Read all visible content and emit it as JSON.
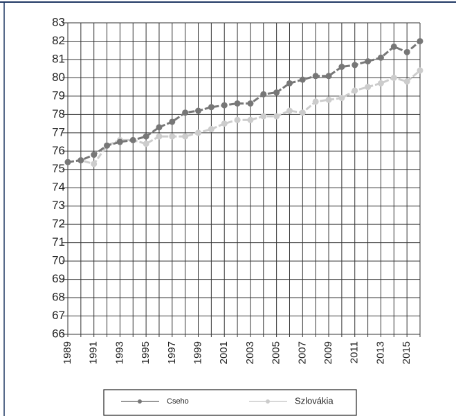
{
  "chart_data": {
    "type": "line",
    "categories": [
      "1989",
      null,
      "1991",
      null,
      "1993",
      null,
      "1995",
      null,
      "1997",
      null,
      "1999",
      null,
      "2001",
      null,
      "2003",
      null,
      "2005",
      null,
      "2007",
      null,
      "2009",
      null,
      "2011",
      null,
      "2013",
      null,
      "2015",
      null
    ],
    "series": [
      {
        "name": "Cseho",
        "color": "#777777",
        "values": [
          75.4,
          75.5,
          75.8,
          76.3,
          76.5,
          76.6,
          76.8,
          77.3,
          77.6,
          78.1,
          78.2,
          78.4,
          78.5,
          78.6,
          78.6,
          79.1,
          79.2,
          79.7,
          79.9,
          80.1,
          80.1,
          80.6,
          80.7,
          80.9,
          81.1,
          81.7,
          81.4,
          82.0
        ]
      },
      {
        "name": "Szlovákia",
        "color": "#cccccc",
        "values": [
          75.4,
          75.5,
          75.3,
          76.3,
          76.6,
          76.6,
          76.4,
          76.8,
          76.8,
          76.8,
          77.0,
          77.2,
          77.5,
          77.7,
          77.7,
          77.9,
          77.9,
          78.2,
          78.1,
          78.7,
          78.8,
          78.9,
          79.3,
          79.5,
          79.7,
          80.0,
          79.8,
          80.4
        ]
      }
    ],
    "ylim": [
      66,
      83
    ],
    "yticks": [
      66,
      67,
      68,
      69,
      70,
      71,
      72,
      73,
      74,
      75,
      76,
      77,
      78,
      79,
      80,
      81,
      82,
      83
    ],
    "grid": true
  }
}
